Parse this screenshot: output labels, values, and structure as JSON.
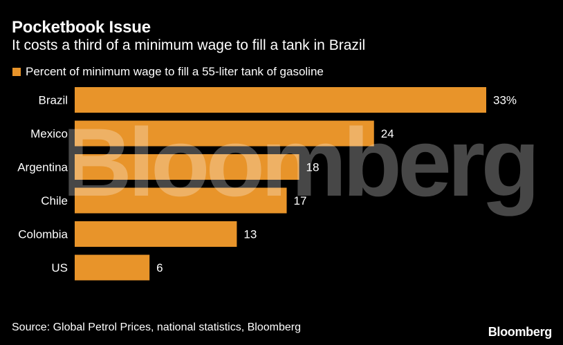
{
  "header": {
    "title": "Pocketbook Issue",
    "subtitle": "It costs a third of a minimum wage to fill a tank in Brazil"
  },
  "legend": {
    "label": "Percent of minimum wage to fill a 55-liter tank of gasoline"
  },
  "colors": {
    "bar": "#e8942a",
    "background": "#000000",
    "text": "#ffffff"
  },
  "chart_data": {
    "type": "bar",
    "orientation": "horizontal",
    "categories": [
      "Brazil",
      "Mexico",
      "Argentina",
      "Chile",
      "Colombia",
      "US"
    ],
    "values": [
      33,
      24,
      18,
      17,
      13,
      6
    ],
    "data_labels": [
      "33%",
      "24",
      "18",
      "17",
      "13",
      "6"
    ],
    "xlim": [
      0,
      33
    ],
    "grid": false,
    "legend_position": "top-left"
  },
  "footer": {
    "source": "Source: Global Petrol Prices, national statistics, Bloomberg",
    "brand": "Bloomberg"
  },
  "watermark": "Bloomberg"
}
